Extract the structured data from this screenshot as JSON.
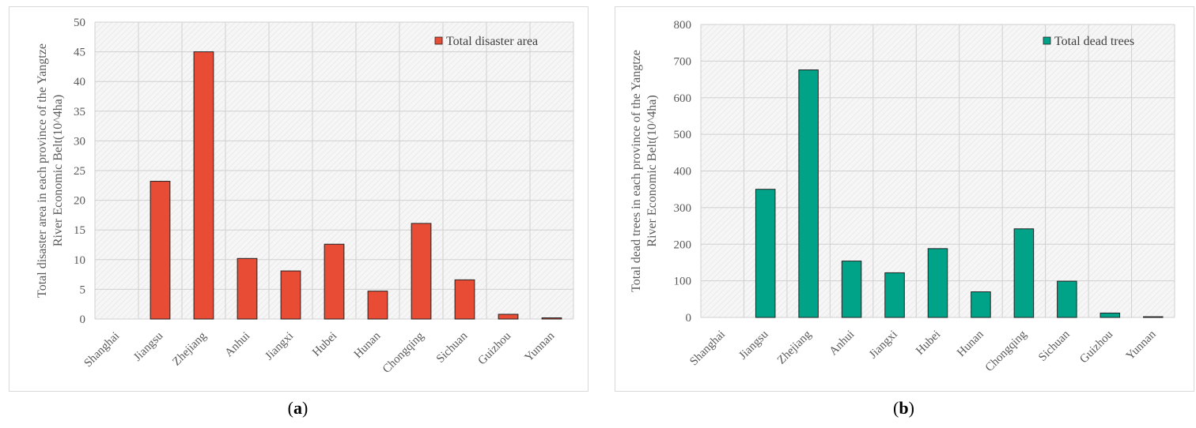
{
  "chart_data": [
    {
      "type": "bar",
      "panel_label": "a",
      "categories": [
        "Shanghai",
        "Jiangsu",
        "Zhejiang",
        "Anhui",
        "Jiangxi",
        "Hubei",
        "Hunan",
        "Chongqing",
        "Sichuan",
        "Guizhou",
        "Yunnan"
      ],
      "series": [
        {
          "name": "Total disaster area",
          "values": [
            0,
            23.2,
            45,
            10.2,
            8.1,
            12.6,
            4.7,
            16.1,
            6.6,
            0.8,
            0.2
          ],
          "color": "#e84c35"
        }
      ],
      "ylabel_lines": [
        "Total disaster area in each province of the Yangtze",
        "River Economic Belt(10^4ha)"
      ],
      "ylim": [
        0,
        50
      ],
      "yticks": [
        0,
        5,
        10,
        15,
        20,
        25,
        30,
        35,
        40,
        45,
        50
      ],
      "legend_position": "top-right",
      "grid": true
    },
    {
      "type": "bar",
      "panel_label": "b",
      "categories": [
        "Shanghai",
        "Jiangsu",
        "Zhejiang",
        "Anhui",
        "Jiangxi",
        "Hubei",
        "Hunan",
        "Chongqing",
        "Sichuan",
        "Guizhou",
        "Yunnan"
      ],
      "series": [
        {
          "name": "Total dead trees",
          "values": [
            0,
            350,
            676,
            154,
            122,
            188,
            70,
            242,
            99,
            12,
            2
          ],
          "color": "#00a388"
        }
      ],
      "ylabel_lines": [
        "Total dead trees in each province of the Yangtze",
        "River Economic Belt(10^4ha)"
      ],
      "ylim": [
        0,
        800
      ],
      "yticks": [
        0,
        100,
        200,
        300,
        400,
        500,
        600,
        700,
        800
      ],
      "legend_position": "top-right",
      "grid": true
    }
  ]
}
